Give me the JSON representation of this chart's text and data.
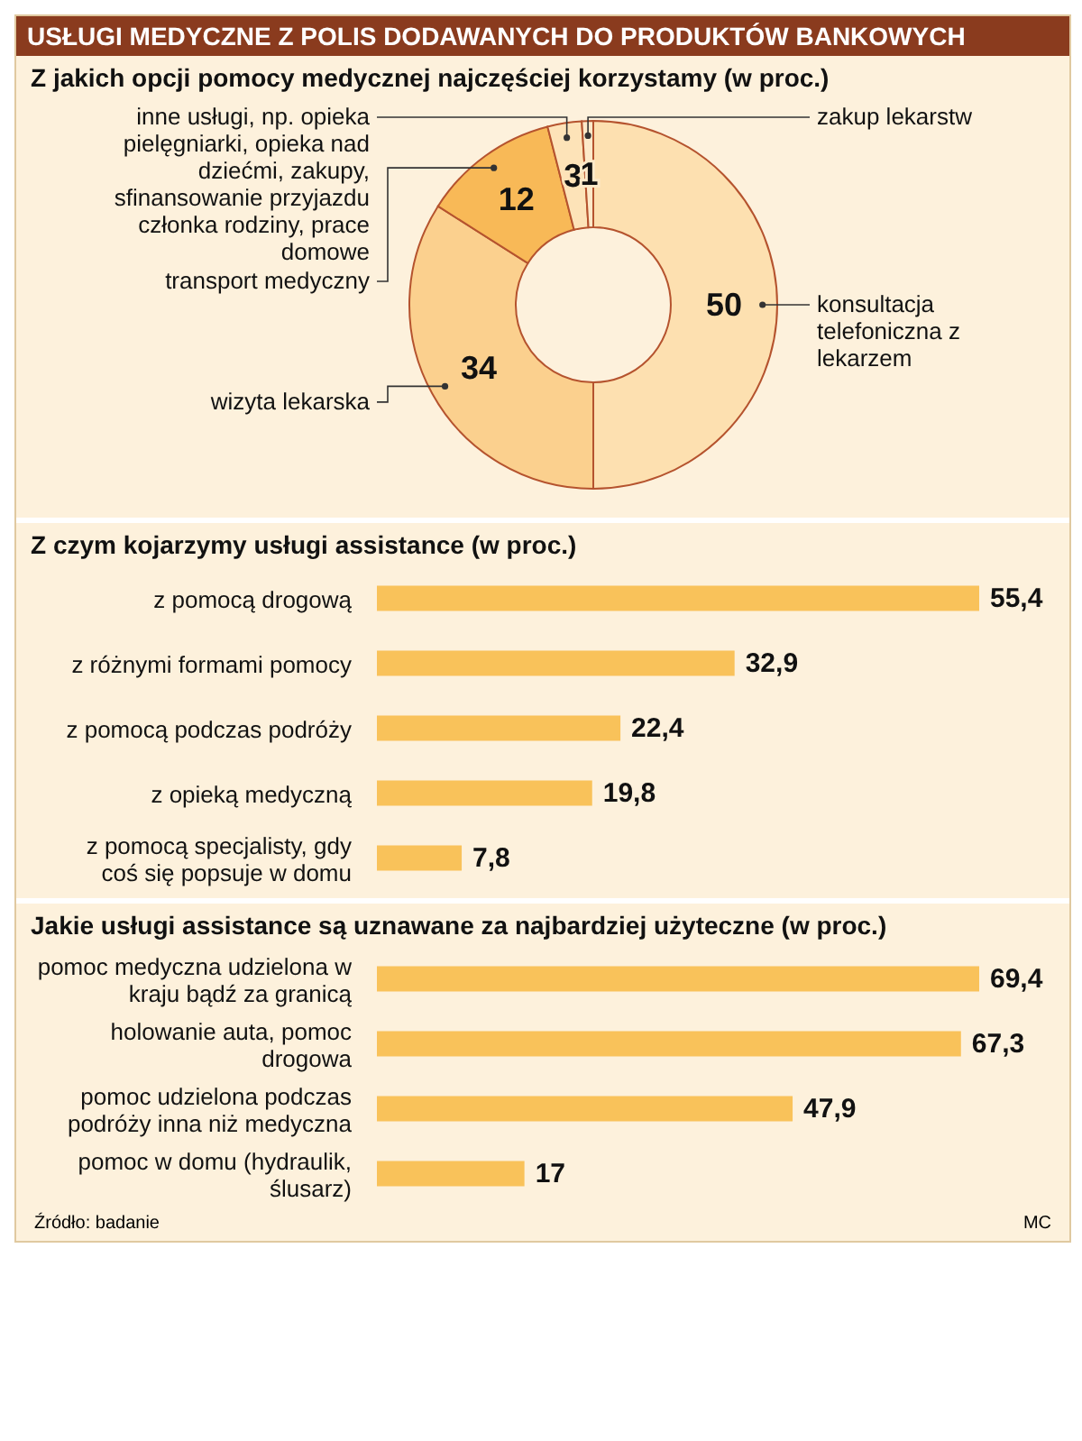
{
  "chart_data": [
    {
      "type": "donut",
      "title": "USŁUGI MEDYCZNE Z POLIS DODAWANYCH DO PRODUKTÓW BANKOWYCH",
      "subtitle": "Z jakich opcji pomocy medycznej najczęściej korzystamy (w proc.)",
      "categories": [
        "konsultacja telefoniczna z lekarzem",
        "wizyta lekarska",
        "transport medyczny",
        "inne usługi, np. opieka pielęgniarki, opieka nad dziećmi, zakupy, sfinansowanie przyjazdu członka rodziny, prace domowe",
        "zakup lekarstw"
      ],
      "values": [
        50,
        34,
        12,
        3,
        1
      ],
      "colors": [
        "#fde0b0",
        "#fbd08e",
        "#f8b957",
        "#fde3b8",
        "#fde9c8"
      ],
      "data_labels": true
    },
    {
      "type": "bar",
      "orientation": "horizontal",
      "title": "Z czym kojarzymy usługi assistance (w proc.)",
      "categories": [
        "z pomocą drogową",
        "z różnymi formami pomocy",
        "z pomocą podczas podróży",
        "z opieką medyczną",
        "z pomocą specjalisty, gdy coś się popsuje w domu"
      ],
      "values": [
        55.4,
        32.9,
        22.4,
        19.8,
        7.8
      ],
      "value_labels": [
        "55,4",
        "32,9",
        "22,4",
        "19,8",
        "7,8"
      ],
      "color": "#f9c25a"
    },
    {
      "type": "bar",
      "orientation": "horizontal",
      "title": "Jakie usługi assistance są uznawane za najbardziej użyteczne (w proc.)",
      "categories": [
        "pomoc medyczna udzielona w kraju bądź za granicą",
        "holowanie auta, pomoc drogowa",
        "pomoc udzielona podczas podróży inna niż medyczna",
        "pomoc w domu (hydraulik, ślusarz)"
      ],
      "values": [
        69.4,
        67.3,
        47.9,
        17
      ],
      "value_labels": [
        "69,4",
        "67,3",
        "47,9",
        "17"
      ],
      "color": "#f9c25a",
      "annotations": [
        "Źródło: badanie",
        "MC"
      ]
    }
  ]
}
